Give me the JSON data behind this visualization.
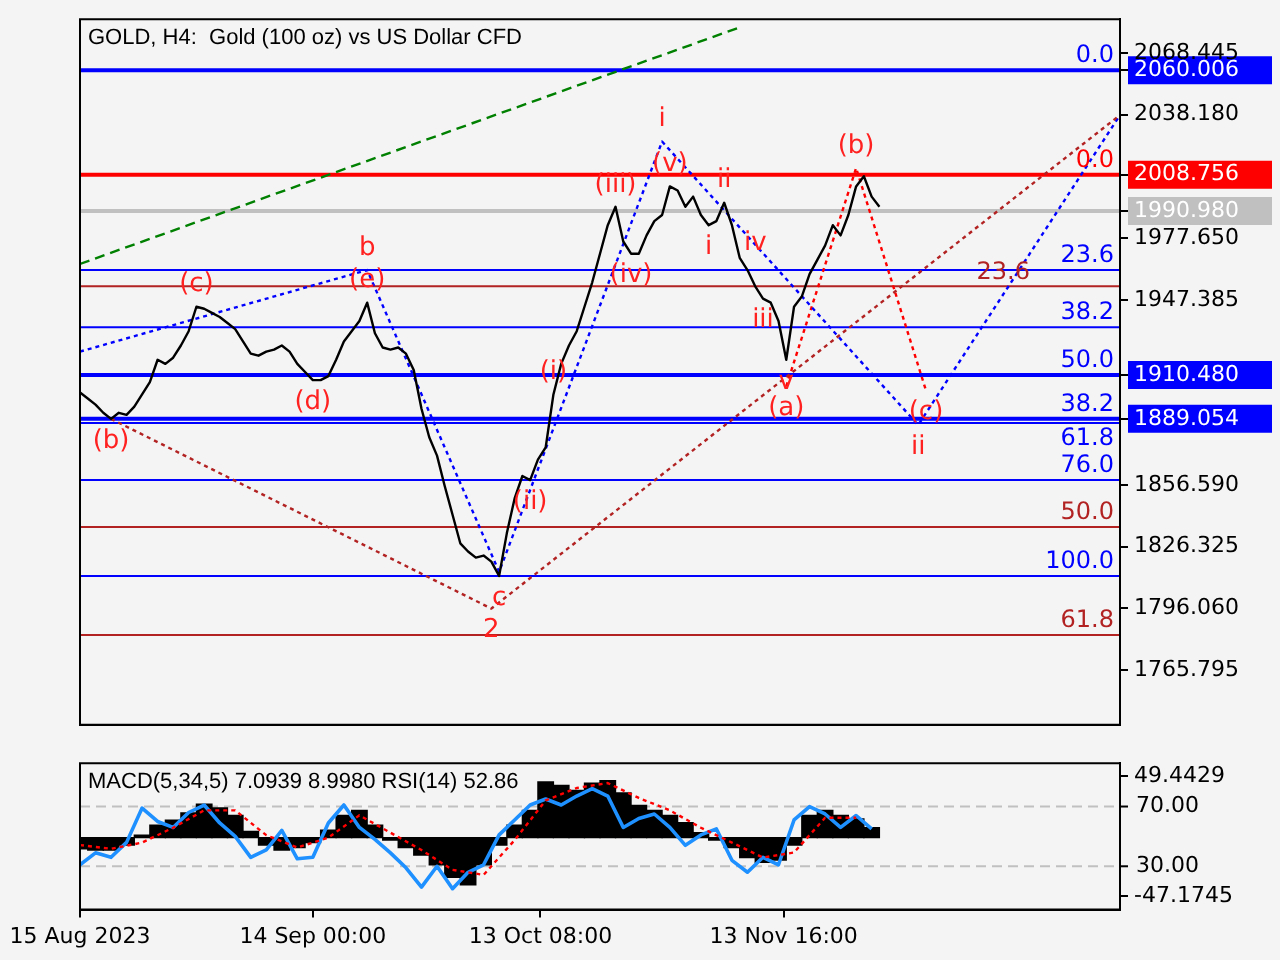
{
  "chart_data": [
    {
      "type": "line",
      "title": "GOLD, H4:  Gold (100 oz) vs US Dollar CFD",
      "x": [
        "2023-08-15",
        "2023-08-16",
        "2023-08-17",
        "2023-08-18",
        "2023-08-19",
        "2023-08-20",
        "2023-08-21",
        "2023-08-22",
        "2023-08-23",
        "2023-08-24",
        "2023-08-25",
        "2023-08-26",
        "2023-08-27",
        "2023-08-28",
        "2023-08-29",
        "2023-08-30",
        "2023-08-31",
        "2023-09-01",
        "2023-09-02",
        "2023-09-03",
        "2023-09-04",
        "2023-09-05",
        "2023-09-06",
        "2023-09-07",
        "2023-09-08",
        "2023-09-09",
        "2023-09-10",
        "2023-09-11",
        "2023-09-12",
        "2023-09-13",
        "2023-09-14",
        "2023-09-15",
        "2023-09-16",
        "2023-09-17",
        "2023-09-18",
        "2023-09-19",
        "2023-09-20",
        "2023-09-21",
        "2023-09-22",
        "2023-09-23",
        "2023-09-24",
        "2023-09-25",
        "2023-09-26",
        "2023-09-27",
        "2023-09-28",
        "2023-09-29",
        "2023-09-30",
        "2023-10-01",
        "2023-10-02",
        "2023-10-03",
        "2023-10-04",
        "2023-10-05",
        "2023-10-06",
        "2023-10-07",
        "2023-10-08",
        "2023-10-09",
        "2023-10-10",
        "2023-10-11",
        "2023-10-12",
        "2023-10-13",
        "2023-10-14",
        "2023-10-15",
        "2023-10-16",
        "2023-10-17",
        "2023-10-18",
        "2023-10-19",
        "2023-10-20",
        "2023-10-21",
        "2023-10-22",
        "2023-10-23",
        "2023-10-24",
        "2023-10-25",
        "2023-10-26",
        "2023-10-27",
        "2023-10-28",
        "2023-10-29",
        "2023-10-30",
        "2023-10-31",
        "2023-11-01",
        "2023-11-02",
        "2023-11-03",
        "2023-11-04",
        "2023-11-05",
        "2023-11-06",
        "2023-11-07",
        "2023-11-08",
        "2023-11-09",
        "2023-11-10",
        "2023-11-11",
        "2023-11-12",
        "2023-11-13",
        "2023-11-14",
        "2023-11-15",
        "2023-11-16",
        "2023-11-17",
        "2023-11-18",
        "2023-11-19",
        "2023-11-20",
        "2023-11-21",
        "2023-11-22",
        "2023-11-23",
        "2023-11-24",
        "2023-11-25",
        "2023-11-26"
      ],
      "series": [
        {
          "color": "#000000",
          "values": [
            1902,
            1899,
            1896,
            1892,
            1889,
            1892,
            1891,
            1895,
            1901,
            1907,
            1918,
            1916,
            1919,
            1925,
            1932,
            1944,
            1943,
            1941,
            1939,
            1936,
            1933,
            1927,
            1921,
            1920,
            1922,
            1923,
            1925,
            1922,
            1916,
            1912,
            1908,
            1908,
            1910,
            1918,
            1927,
            1932,
            1937,
            1946,
            1931,
            1924,
            1923,
            1924,
            1921,
            1913,
            1894,
            1880,
            1871,
            1856,
            1842,
            1828,
            1824,
            1821,
            1822,
            1819,
            1812,
            1833,
            1850,
            1861,
            1859,
            1869,
            1875,
            1901,
            1916,
            1925,
            1932,
            1944,
            1956,
            1970,
            1984,
            1993,
            1976,
            1970,
            1970,
            1979,
            1986,
            1989,
            2003,
            2001,
            1993,
            1998,
            1989,
            1984,
            1986,
            1995,
            1984,
            1968,
            1962,
            1954,
            1948,
            1946,
            1937,
            1918,
            1944,
            1949,
            1960,
            1967,
            1974,
            1984,
            1979,
            1989,
            2003,
            2008,
            1998,
            1993
          ]
        },
        {
          "color": "#008000",
          "line_style": "dashed",
          "x": [
            "2023-08-15",
            "2023-11-08"
          ],
          "values": [
            1965,
            2081
          ]
        },
        {
          "color": "#b22222",
          "line_style": "dotted",
          "x": [
            "2023-08-19",
            "2023-10-07",
            "2023-12-27"
          ],
          "values": [
            1889,
            1796,
            2038
          ]
        },
        {
          "color": "#0000ff",
          "line_style": "dotted",
          "x": [
            "2023-08-15",
            "2023-09-21",
            "2023-10-08",
            "2023-10-29",
            "2023-12-01",
            "2023-12-27"
          ],
          "values": [
            1922,
            1962,
            1814,
            2025,
            1886,
            2038
          ]
        },
        {
          "color": "#ff0000",
          "line_style": "dotted",
          "x": [
            "2023-11-14",
            "2023-11-23",
            "2023-12-02"
          ],
          "values": [
            1905,
            2012,
            1903
          ]
        }
      ],
      "xlim": [
        "2023-08-15",
        "2023-12-27"
      ],
      "ylim": [
        1739,
        2085
      ],
      "yticks": [
        {
          "value": 2068.445,
          "label": "2068.445"
        },
        {
          "value": 2060.006,
          "label": "2060.006"
        },
        {
          "value": 2038.18,
          "label": "2038.180"
        },
        {
          "value": 2008.756,
          "label": "2008.756"
        },
        {
          "value": 1990.98,
          "label": "1990.980"
        },
        {
          "value": 1977.65,
          "label": "1977.650"
        },
        {
          "value": 1947.385,
          "label": "1947.385"
        },
        {
          "value": 1910.48,
          "label": "1910.480"
        },
        {
          "value": 1889.054,
          "label": "1889.054"
        },
        {
          "value": 1856.59,
          "label": "1856.590"
        },
        {
          "value": 1826.325,
          "label": "1826.325"
        },
        {
          "value": 1796.06,
          "label": "1796.060"
        },
        {
          "value": 1765.795,
          "label": "1765.795"
        }
      ],
      "tick_labels": "y",
      "grid": false,
      "legend": false,
      "marker": "none",
      "ref_lines": [
        {
          "axis": "y",
          "value": 2060.006,
          "color": "#0000ff"
        },
        {
          "axis": "y",
          "value": 2008.756,
          "color": "#ff0000"
        },
        {
          "axis": "y",
          "value": 1990.98,
          "color": "#c0c0c0"
        },
        {
          "axis": "y",
          "value": 1910.48,
          "color": "#0000ff"
        },
        {
          "axis": "y",
          "value": 1889.054,
          "color": "#0000ff"
        },
        {
          "axis": "y",
          "value": 1954,
          "color": "#b22222"
        },
        {
          "axis": "y",
          "value": 1836,
          "color": "#b22222"
        },
        {
          "axis": "y",
          "value": 1783,
          "color": "#b22222"
        },
        {
          "axis": "y",
          "value": 1962,
          "color": "#0000ff"
        },
        {
          "axis": "y",
          "value": 1934,
          "color": "#0000ff"
        },
        {
          "axis": "y",
          "value": 1887,
          "color": "#0000ff"
        },
        {
          "axis": "y",
          "value": 1859,
          "color": "#0000ff"
        },
        {
          "axis": "y",
          "value": 1812,
          "color": "#0000ff"
        }
      ],
      "annotations": [
        {
          "text": "(b)",
          "x": "2023-08-19",
          "y": 1889
        },
        {
          "text": "(c)",
          "x": "2023-08-30",
          "y": 1944
        },
        {
          "text": "(d)",
          "x": "2023-09-14",
          "y": 1908
        },
        {
          "text": "(e)",
          "x": "2023-09-21",
          "y": 1946
        },
        {
          "text": "b",
          "x": "2023-09-21",
          "y": 1962
        },
        {
          "text": "c",
          "x": "2023-10-08",
          "y": 1812
        },
        {
          "text": "2",
          "x": "2023-10-07",
          "y": 1796
        },
        {
          "text": "(i)",
          "x": "2023-10-15",
          "y": 1901
        },
        {
          "text": "(ii)",
          "x": "2023-10-12",
          "y": 1859
        },
        {
          "text": "(iii)",
          "x": "2023-10-23",
          "y": 1993
        },
        {
          "text": "(iv)",
          "x": "2023-10-25",
          "y": 1970
        },
        {
          "text": "(v)",
          "x": "2023-10-30",
          "y": 2003
        },
        {
          "text": "i",
          "x": "2023-10-29",
          "y": 2025
        },
        {
          "text": "ii",
          "x": "2023-11-06",
          "y": 1995
        },
        {
          "text": "i",
          "x": "2023-11-04",
          "y": 1984
        },
        {
          "text": "iv",
          "x": "2023-11-10",
          "y": 1975
        },
        {
          "text": "iii",
          "x": "2023-11-11",
          "y": 1948
        },
        {
          "text": "v",
          "x": "2023-11-14",
          "y": 1918
        },
        {
          "text": "(a)",
          "x": "2023-11-14",
          "y": 1905
        },
        {
          "text": "(b)",
          "x": "2023-11-23",
          "y": 2012
        },
        {
          "text": "(c)",
          "x": "2023-12-02",
          "y": 1903
        },
        {
          "text": "ii",
          "x": "2023-12-01",
          "y": 1886
        },
        {
          "text": "0.0",
          "y": 2060.006
        },
        {
          "text": "23.6",
          "y": 1954
        },
        {
          "text": "38.2",
          "y": 1889.054
        },
        {
          "text": "50.0",
          "y": 1836
        },
        {
          "text": "61.8",
          "y": 1783
        },
        {
          "text": "0.0",
          "y": 2008.756
        },
        {
          "text": "23.6",
          "y": 1962
        },
        {
          "text": "38.2",
          "y": 1934
        },
        {
          "text": "50.0",
          "y": 1910.48
        },
        {
          "text": "61.8",
          "y": 1887
        },
        {
          "text": "76.0",
          "y": 1859
        },
        {
          "text": "100.0",
          "y": 1812
        }
      ]
    },
    {
      "type": "bar",
      "title": "MACD(5,34,5) 7.0939 8.9980 RSI(14) 52.86",
      "x": [
        "2023-08-15",
        "2023-08-17",
        "2023-08-19",
        "2023-08-21",
        "2023-08-23",
        "2023-08-25",
        "2023-08-27",
        "2023-08-29",
        "2023-08-31",
        "2023-09-02",
        "2023-09-04",
        "2023-09-06",
        "2023-09-08",
        "2023-09-10",
        "2023-09-12",
        "2023-09-14",
        "2023-09-16",
        "2023-09-18",
        "2023-09-20",
        "2023-09-22",
        "2023-09-24",
        "2023-09-26",
        "2023-09-28",
        "2023-09-30",
        "2023-10-02",
        "2023-10-04",
        "2023-10-06",
        "2023-10-08",
        "2023-10-10",
        "2023-10-12",
        "2023-10-14",
        "2023-10-16",
        "2023-10-18",
        "2023-10-20",
        "2023-10-22",
        "2023-10-24",
        "2023-10-26",
        "2023-10-28",
        "2023-10-30",
        "2023-11-01",
        "2023-11-03",
        "2023-11-05",
        "2023-11-07",
        "2023-11-09",
        "2023-11-11",
        "2023-11-13",
        "2023-11-15",
        "2023-11-17",
        "2023-11-19",
        "2023-11-21",
        "2023-11-23",
        "2023-11-25"
      ],
      "series": [
        {
          "color": "#000000",
          "values": [
            -9,
            -10,
            -10,
            -6,
            2,
            10,
            14,
            20,
            27,
            24,
            18,
            5,
            -6,
            -10,
            -8,
            -4,
            6,
            18,
            22,
            10,
            -2,
            -8,
            -14,
            -22,
            -32,
            -38,
            -22,
            -6,
            10,
            22,
            45,
            42,
            38,
            44,
            46,
            36,
            26,
            22,
            18,
            12,
            4,
            -2,
            -8,
            -16,
            -20,
            -18,
            -6,
            18,
            22,
            18,
            15,
            8
          ]
        },
        {
          "type": "line",
          "color": "#ff0000",
          "line_style": "dotted",
          "x": [
            "2023-08-15",
            "2023-08-19",
            "2023-08-23",
            "2023-08-27",
            "2023-08-31",
            "2023-09-04",
            "2023-09-08",
            "2023-09-12",
            "2023-09-16",
            "2023-09-20",
            "2023-09-24",
            "2023-09-28",
            "2023-10-02",
            "2023-10-06",
            "2023-10-10",
            "2023-10-14",
            "2023-10-18",
            "2023-10-22",
            "2023-10-26",
            "2023-10-30",
            "2023-11-03",
            "2023-11-07",
            "2023-11-11",
            "2023-11-15",
            "2023-11-19",
            "2023-11-23"
          ],
          "values": [
            -6,
            -9,
            -4,
            8,
            22,
            22,
            2,
            -8,
            0,
            18,
            4,
            -10,
            -26,
            -30,
            -2,
            30,
            40,
            44,
            32,
            22,
            8,
            -4,
            -16,
            -12,
            16,
            16
          ]
        },
        {
          "type": "line",
          "color": "#1e90ff",
          "axis": "y2",
          "values": [
            31,
            39,
            36,
            46,
            69,
            60,
            56,
            66,
            71,
            59,
            50,
            36,
            41,
            54,
            35,
            36,
            59,
            71,
            56,
            48,
            39,
            29,
            16,
            30,
            15,
            26,
            31,
            51,
            61,
            71,
            75,
            71,
            77,
            82,
            77,
            56,
            62,
            65,
            56,
            44,
            51,
            55,
            34,
            26,
            36,
            31,
            61,
            70,
            65,
            56,
            64,
            55
          ]
        }
      ],
      "xlim": [
        "2023-08-15",
        "2023-12-27"
      ],
      "xticks": [
        {
          "value": "2023-08-15",
          "label": "15 Aug 2023"
        },
        {
          "value": "2023-09-14T00:00",
          "label": "14 Sep 00:00"
        },
        {
          "value": "2023-10-13T08:00",
          "label": "13 Oct 08:00"
        },
        {
          "value": "2023-11-13T16:00",
          "label": "13 Nov 16:00"
        }
      ],
      "ylim": [
        -58,
        60
      ],
      "yticks": [
        49.4429,
        -47.1745
      ],
      "y2lim": [
        1,
        99
      ],
      "y2ticks": [
        {
          "value": 70,
          "label": "70.00"
        },
        {
          "value": 30,
          "label": "30.00"
        }
      ],
      "ref_lines": [
        {
          "axis": "y2",
          "value": 70,
          "color": "#c0c0c0",
          "line_style": "dashed"
        },
        {
          "axis": "y2",
          "value": 30,
          "color": "#c0c0c0",
          "line_style": "dashed"
        }
      ],
      "grid": false,
      "legend": false,
      "marker": "none"
    }
  ]
}
